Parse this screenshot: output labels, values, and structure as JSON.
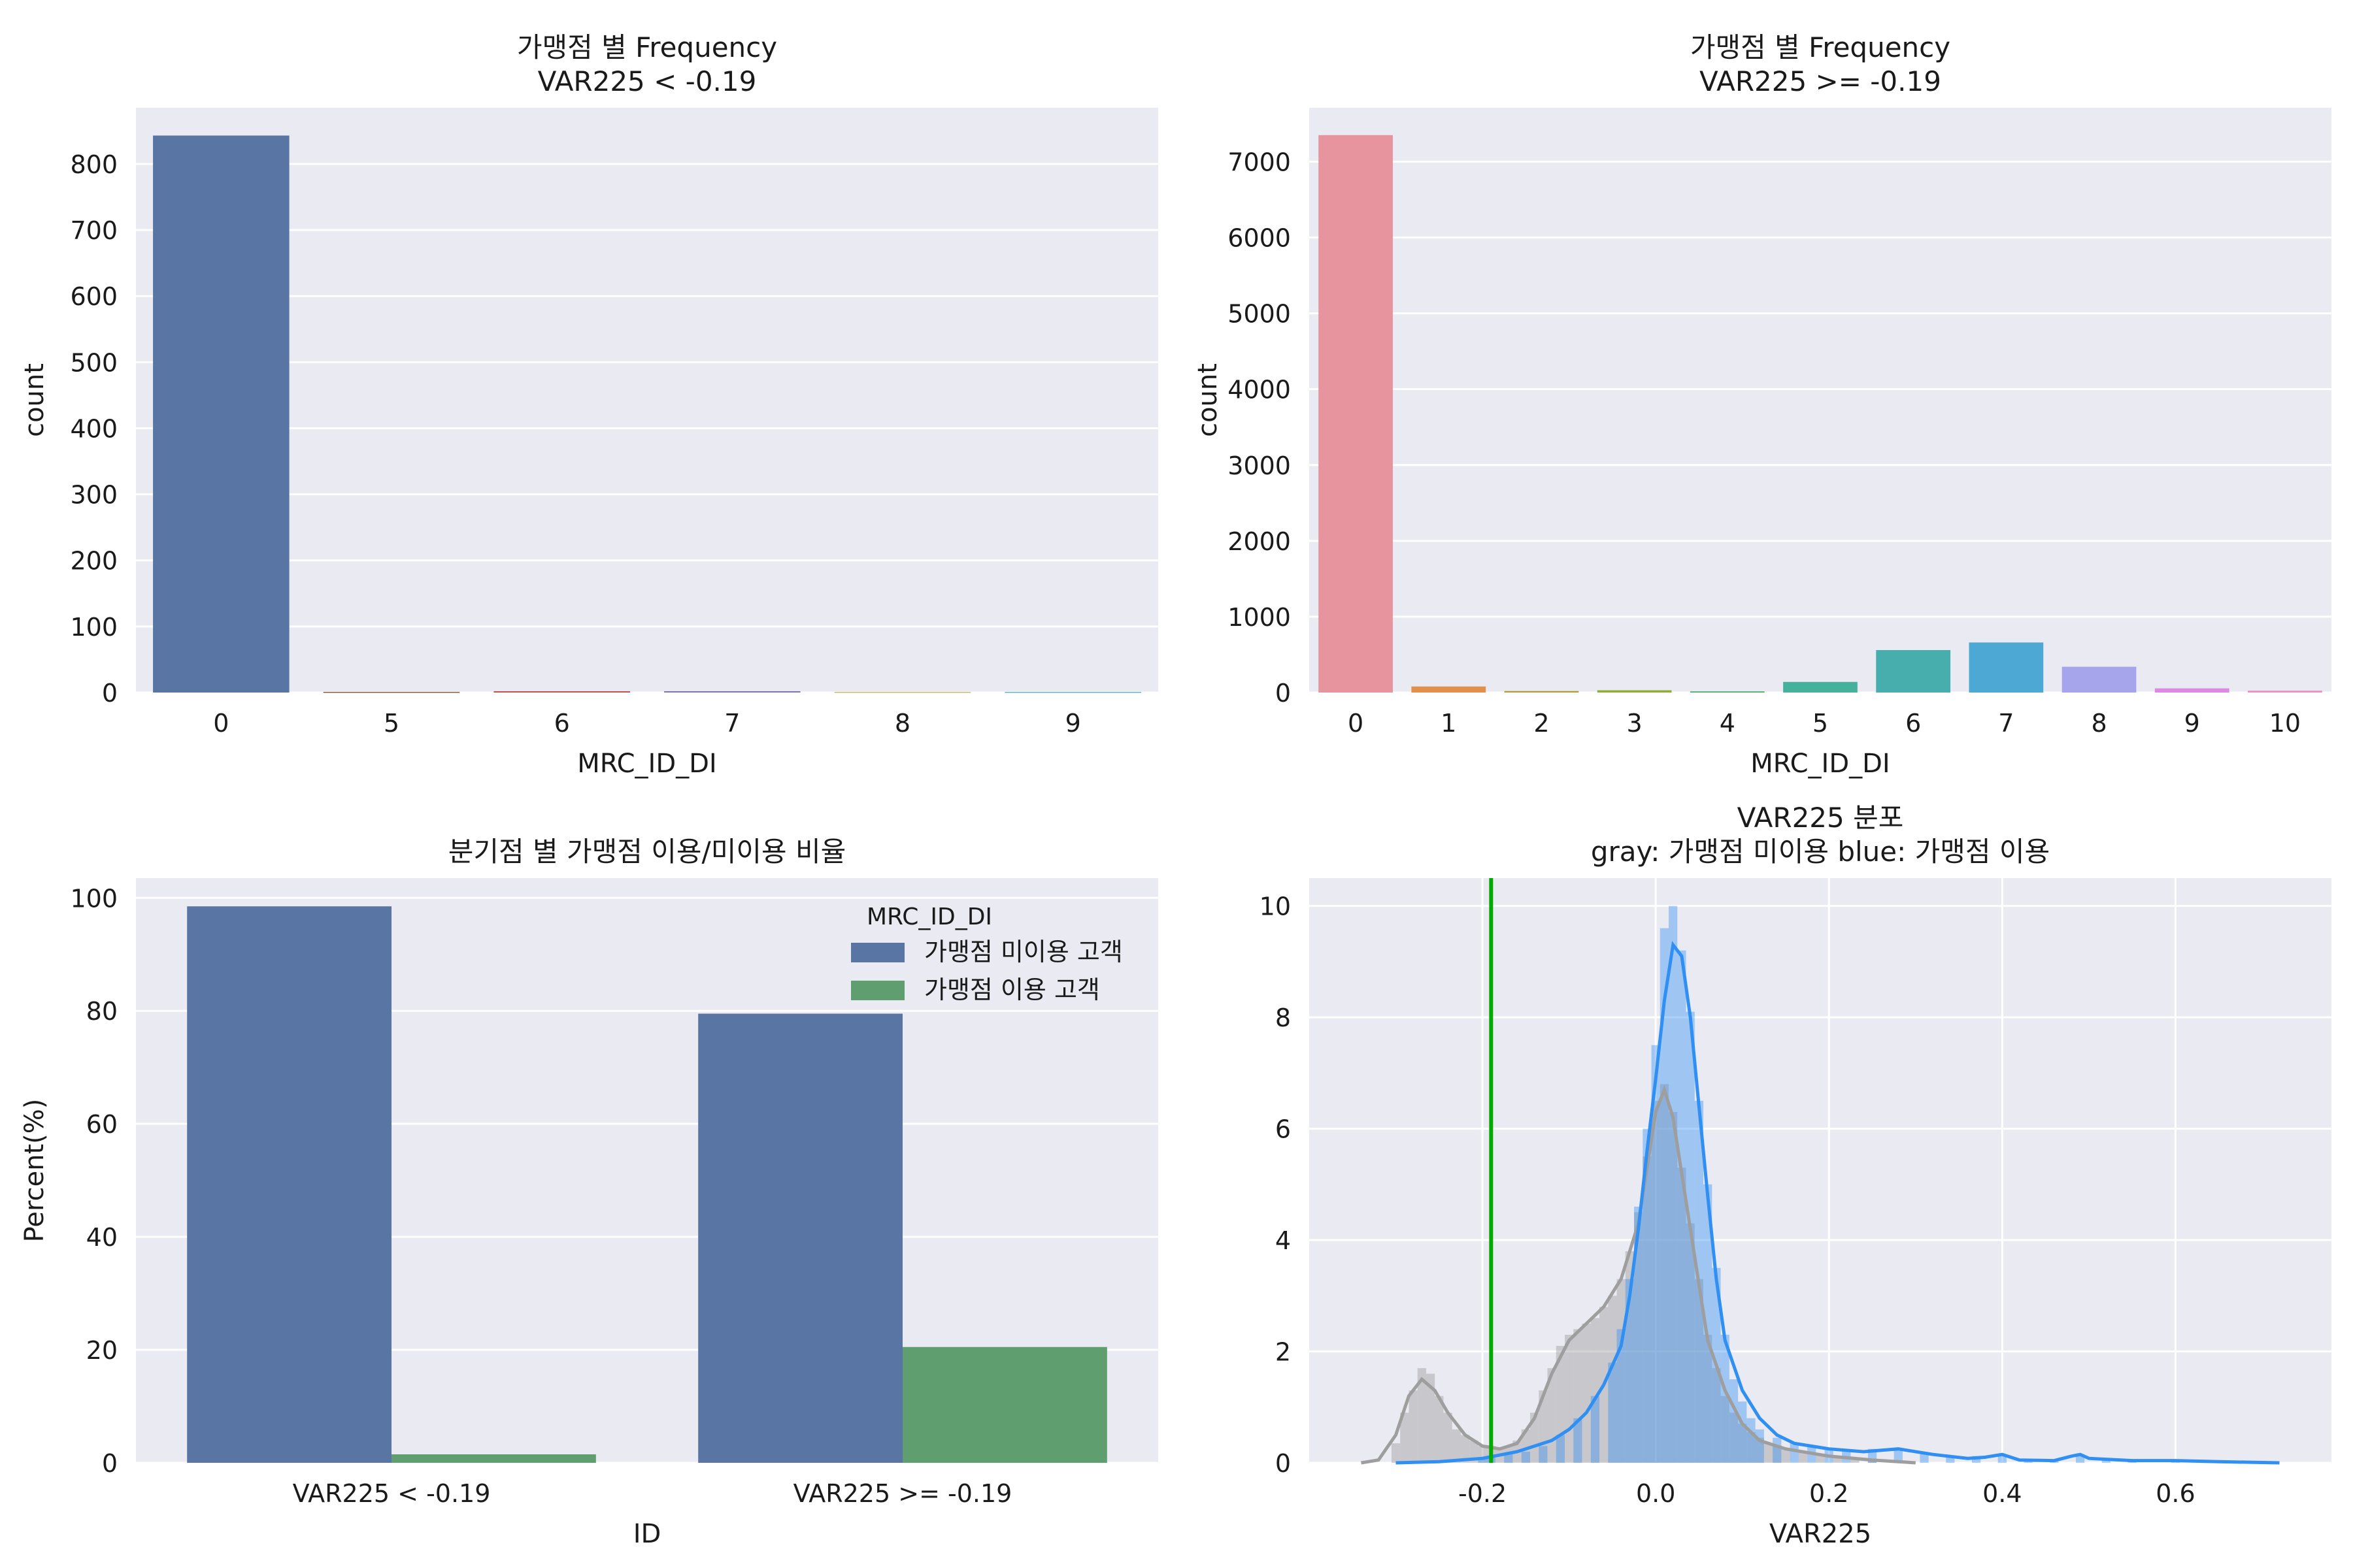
{
  "chart_data": [
    {
      "type": "bar",
      "title": "가맹점 별 Frequency\nVAR225 < -0.19",
      "xlabel": "MRC_ID_DI",
      "ylabel": "count",
      "categories": [
        "0",
        "5",
        "6",
        "7",
        "8",
        "9"
      ],
      "values": [
        843,
        1,
        2,
        2,
        1,
        1
      ],
      "colors": [
        "#5975a4",
        "#8c613c",
        "#c44e52",
        "#8172b2",
        "#ccb974",
        "#64b5cd"
      ],
      "ylim": [
        0,
        885
      ],
      "yticks": [
        0,
        100,
        200,
        300,
        400,
        500,
        600,
        700,
        800
      ],
      "grid": true
    },
    {
      "type": "bar",
      "title": "가맹점 별 Frequency\nVAR225 >= -0.19",
      "xlabel": "MRC_ID_DI",
      "ylabel": "count",
      "categories": [
        "0",
        "1",
        "2",
        "3",
        "4",
        "5",
        "6",
        "7",
        "8",
        "9",
        "10"
      ],
      "values": [
        7350,
        80,
        20,
        30,
        15,
        140,
        560,
        660,
        340,
        55,
        25
      ],
      "colors": [
        "#e8949f",
        "#e28f4e",
        "#b59d36",
        "#90ad35",
        "#41b065",
        "#45b19d",
        "#48aead",
        "#4da9d3",
        "#a6a5eb",
        "#dd88e3",
        "#e991c4"
      ],
      "ylim": [
        0,
        7710
      ],
      "yticks": [
        0,
        1000,
        2000,
        3000,
        4000,
        5000,
        6000,
        7000
      ],
      "grid": true
    },
    {
      "type": "bar",
      "title": "분기점 별 가맹점 이용/미이용 비율",
      "xlabel": "ID",
      "ylabel": "Percent(%)",
      "categories": [
        "VAR225 < -0.19",
        "VAR225 >= -0.19"
      ],
      "series": [
        {
          "name": "가맹점 미이용 고객",
          "color": "#5975a4",
          "values": [
            98.5,
            79.5
          ]
        },
        {
          "name": "가맹점 이용 고객",
          "color": "#5f9e6e",
          "values": [
            1.5,
            20.5
          ]
        }
      ],
      "legend_title": "MRC_ID_DI",
      "legend_position": "top-right",
      "ylim": [
        0,
        103.5
      ],
      "yticks": [
        0,
        20,
        40,
        60,
        80,
        100
      ],
      "grid": true
    },
    {
      "type": "histogram",
      "title": "VAR225 분포\ngray: 가맹점 미이용    blue: 가맹점 이용",
      "xlabel": "VAR225",
      "ylabel": "",
      "xlim": [
        -0.4,
        0.78
      ],
      "ylim": [
        0,
        10.5
      ],
      "xticks": [
        -0.2,
        0.0,
        0.2,
        0.4,
        0.6
      ],
      "xtick_labels": [
        "-0.2",
        "0.0",
        "0.2",
        "0.4",
        "0.6"
      ],
      "yticks": [
        0,
        2,
        4,
        6,
        8,
        10
      ],
      "threshold": {
        "x": -0.19,
        "color": "#00aa00"
      },
      "gray_color": "#9e9e9e",
      "blue_color": "#2f8ff2",
      "gray_kde": [
        [
          -0.34,
          0
        ],
        [
          -0.32,
          0.05
        ],
        [
          -0.3,
          0.5
        ],
        [
          -0.285,
          1.2
        ],
        [
          -0.27,
          1.5
        ],
        [
          -0.255,
          1.3
        ],
        [
          -0.24,
          0.9
        ],
        [
          -0.22,
          0.5
        ],
        [
          -0.2,
          0.3
        ],
        [
          -0.18,
          0.25
        ],
        [
          -0.16,
          0.35
        ],
        [
          -0.14,
          0.8
        ],
        [
          -0.12,
          1.6
        ],
        [
          -0.1,
          2.2
        ],
        [
          -0.08,
          2.5
        ],
        [
          -0.06,
          2.8
        ],
        [
          -0.04,
          3.3
        ],
        [
          -0.02,
          4.3
        ],
        [
          -0.01,
          5.3
        ],
        [
          0.0,
          6.3
        ],
        [
          0.01,
          6.7
        ],
        [
          0.02,
          6.2
        ],
        [
          0.03,
          5.2
        ],
        [
          0.04,
          4.2
        ],
        [
          0.05,
          3.2
        ],
        [
          0.06,
          2.2
        ],
        [
          0.08,
          1.3
        ],
        [
          0.1,
          0.7
        ],
        [
          0.12,
          0.4
        ],
        [
          0.15,
          0.25
        ],
        [
          0.2,
          0.12
        ],
        [
          0.25,
          0.05
        ],
        [
          0.3,
          0
        ]
      ],
      "blue_kde": [
        [
          -0.3,
          0
        ],
        [
          -0.25,
          0.02
        ],
        [
          -0.2,
          0.08
        ],
        [
          -0.16,
          0.2
        ],
        [
          -0.12,
          0.4
        ],
        [
          -0.1,
          0.6
        ],
        [
          -0.08,
          0.9
        ],
        [
          -0.06,
          1.4
        ],
        [
          -0.04,
          2.1
        ],
        [
          -0.03,
          3.0
        ],
        [
          -0.02,
          4.2
        ],
        [
          -0.01,
          5.6
        ],
        [
          0.0,
          6.9
        ],
        [
          0.01,
          8.3
        ],
        [
          0.02,
          9.3
        ],
        [
          0.03,
          9.1
        ],
        [
          0.04,
          8.0
        ],
        [
          0.05,
          6.4
        ],
        [
          0.06,
          4.8
        ],
        [
          0.07,
          3.3
        ],
        [
          0.08,
          2.2
        ],
        [
          0.1,
          1.3
        ],
        [
          0.12,
          0.8
        ],
        [
          0.14,
          0.5
        ],
        [
          0.16,
          0.35
        ],
        [
          0.2,
          0.25
        ],
        [
          0.24,
          0.2
        ],
        [
          0.28,
          0.25
        ],
        [
          0.32,
          0.15
        ],
        [
          0.36,
          0.08
        ],
        [
          0.38,
          0.1
        ],
        [
          0.4,
          0.15
        ],
        [
          0.42,
          0.05
        ],
        [
          0.46,
          0.04
        ],
        [
          0.48,
          0.12
        ],
        [
          0.49,
          0.15
        ],
        [
          0.5,
          0.08
        ],
        [
          0.55,
          0.04
        ],
        [
          0.6,
          0.04
        ],
        [
          0.65,
          0.02
        ],
        [
          0.72,
          0
        ]
      ],
      "gray_hist": [
        [
          -0.3,
          0.35
        ],
        [
          -0.29,
          0.9
        ],
        [
          -0.28,
          1.3
        ],
        [
          -0.27,
          1.7
        ],
        [
          -0.26,
          1.6
        ],
        [
          -0.25,
          1.2
        ],
        [
          -0.24,
          0.9
        ],
        [
          -0.23,
          0.6
        ],
        [
          -0.22,
          0.5
        ],
        [
          -0.21,
          0.4
        ],
        [
          -0.2,
          0.3
        ],
        [
          -0.19,
          0.3
        ],
        [
          -0.18,
          0.25
        ],
        [
          -0.17,
          0.3
        ],
        [
          -0.16,
          0.4
        ],
        [
          -0.15,
          0.6
        ],
        [
          -0.14,
          0.9
        ],
        [
          -0.13,
          1.3
        ],
        [
          -0.12,
          1.7
        ],
        [
          -0.11,
          2.1
        ],
        [
          -0.1,
          2.3
        ],
        [
          -0.09,
          2.4
        ],
        [
          -0.08,
          2.5
        ],
        [
          -0.07,
          2.6
        ],
        [
          -0.06,
          2.8
        ],
        [
          -0.05,
          3.0
        ],
        [
          -0.04,
          3.3
        ],
        [
          -0.03,
          3.8
        ],
        [
          -0.02,
          4.5
        ],
        [
          -0.01,
          5.5
        ],
        [
          0.0,
          6.5
        ],
        [
          0.01,
          6.8
        ],
        [
          0.02,
          6.3
        ],
        [
          0.03,
          5.3
        ],
        [
          0.04,
          4.3
        ],
        [
          0.05,
          3.3
        ],
        [
          0.06,
          2.3
        ],
        [
          0.07,
          1.7
        ],
        [
          0.08,
          1.2
        ],
        [
          0.09,
          0.9
        ],
        [
          0.1,
          0.7
        ],
        [
          0.11,
          0.55
        ],
        [
          0.12,
          0.45
        ],
        [
          0.13,
          0.35
        ],
        [
          0.14,
          0.3
        ],
        [
          0.15,
          0.25
        ],
        [
          0.17,
          0.2
        ],
        [
          0.19,
          0.15
        ],
        [
          0.21,
          0.1
        ],
        [
          0.23,
          0.08
        ],
        [
          0.25,
          0.05
        ]
      ],
      "blue_hist": [
        [
          -0.2,
          0.08
        ],
        [
          -0.19,
          0.1
        ],
        [
          -0.17,
          0.15
        ],
        [
          -0.15,
          0.2
        ],
        [
          -0.13,
          0.3
        ],
        [
          -0.11,
          0.5
        ],
        [
          -0.09,
          0.8
        ],
        [
          -0.07,
          1.2
        ],
        [
          -0.05,
          1.8
        ],
        [
          -0.04,
          2.4
        ],
        [
          -0.03,
          3.3
        ],
        [
          -0.02,
          4.6
        ],
        [
          -0.01,
          6.0
        ],
        [
          0.0,
          7.5
        ],
        [
          0.01,
          9.6
        ],
        [
          0.02,
          10.0
        ],
        [
          0.03,
          9.2
        ],
        [
          0.04,
          8.1
        ],
        [
          0.05,
          6.5
        ],
        [
          0.06,
          5.0
        ],
        [
          0.07,
          3.5
        ],
        [
          0.08,
          2.3
        ],
        [
          0.09,
          1.5
        ],
        [
          0.1,
          1.1
        ],
        [
          0.11,
          0.8
        ],
        [
          0.12,
          0.6
        ],
        [
          0.14,
          0.45
        ],
        [
          0.16,
          0.35
        ],
        [
          0.18,
          0.3
        ],
        [
          0.2,
          0.25
        ],
        [
          0.22,
          0.22
        ],
        [
          0.25,
          0.25
        ],
        [
          0.28,
          0.25
        ],
        [
          0.31,
          0.18
        ],
        [
          0.34,
          0.12
        ],
        [
          0.37,
          0.12
        ],
        [
          0.4,
          0.15
        ],
        [
          0.43,
          0.06
        ],
        [
          0.46,
          0.05
        ],
        [
          0.49,
          0.15
        ],
        [
          0.52,
          0.06
        ],
        [
          0.55,
          0.04
        ],
        [
          0.6,
          0.04
        ],
        [
          0.65,
          0.03
        ]
      ]
    }
  ]
}
